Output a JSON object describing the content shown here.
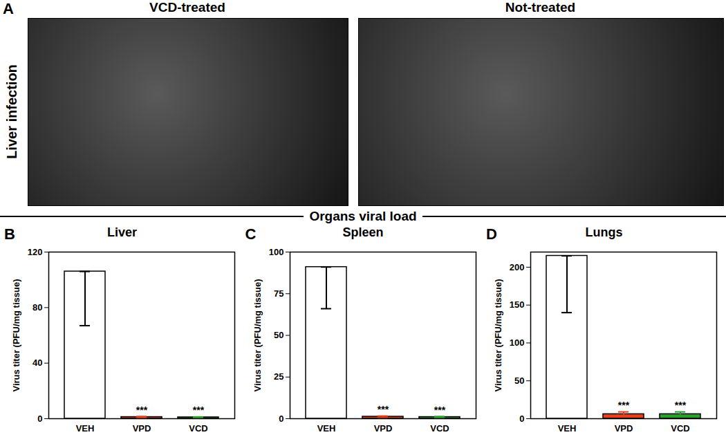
{
  "figure": {
    "image_panel": {
      "label": "A",
      "row_label": "Liver infection",
      "images": [
        "VCD-treated",
        "Not-treated"
      ]
    },
    "section_title": "Organs viral load"
  },
  "chart_data": [
    {
      "panel": "B",
      "type": "bar",
      "title": "Liver",
      "y_label": "Virus titer (PFU/mg tissue)",
      "categories": [
        "VEH",
        "VPD",
        "VCD"
      ],
      "values": [
        106,
        1.2,
        1.0
      ],
      "error_bars": [
        [
          67,
          106
        ],
        [
          0.8,
          1.6
        ],
        [
          0.7,
          1.3
        ]
      ],
      "annotations": [
        null,
        "***",
        "***"
      ],
      "colors": [
        "#ffffff",
        "#e8401c",
        "#2ca02c"
      ],
      "ylim": [
        0,
        120
      ],
      "yticks": [
        0,
        40,
        80,
        120
      ]
    },
    {
      "panel": "C",
      "type": "bar",
      "title": "Spleen",
      "y_label": "Virus titer (PFU/mg tissue)",
      "categories": [
        "VEH",
        "VPD",
        "VCD"
      ],
      "values": [
        91,
        1.2,
        1.0
      ],
      "error_bars": [
        [
          66,
          91
        ],
        [
          0.8,
          1.6
        ],
        [
          0.7,
          1.3
        ]
      ],
      "annotations": [
        null,
        "***",
        "***"
      ],
      "colors": [
        "#ffffff",
        "#e8401c",
        "#2ca02c"
      ],
      "ylim": [
        0,
        100
      ],
      "yticks": [
        0,
        25,
        50,
        75,
        100
      ]
    },
    {
      "panel": "D",
      "type": "bar",
      "title": "Lungs",
      "y_label": "Virus titer (PFU/mg tissue)",
      "categories": [
        "VEH",
        "VPD",
        "VCD"
      ],
      "values": [
        215,
        6,
        6
      ],
      "error_bars": [
        [
          140,
          215
        ],
        [
          3,
          9
        ],
        [
          3,
          9
        ]
      ],
      "annotations": [
        null,
        "***",
        "***"
      ],
      "colors": [
        "#ffffff",
        "#e8401c",
        "#2ca02c"
      ],
      "ylim": [
        0,
        220
      ],
      "yticks": [
        0,
        50,
        100,
        150,
        200
      ]
    }
  ]
}
